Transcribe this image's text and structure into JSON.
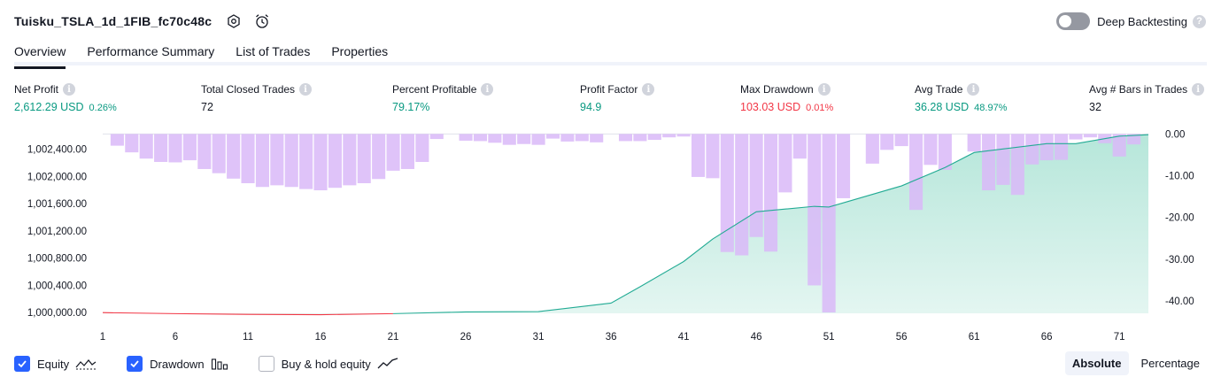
{
  "header": {
    "strategy_name": "Tuisku_TSLA_1d_1FIB_fc70c48c",
    "icons": [
      "settings-icon",
      "alarm-clock-icon"
    ]
  },
  "deep_backtesting": {
    "label": "Deep Backtesting",
    "enabled": false,
    "help": "?"
  },
  "tabs": [
    {
      "label": "Overview",
      "active": true
    },
    {
      "label": "Performance Summary",
      "active": false
    },
    {
      "label": "List of Trades",
      "active": false
    },
    {
      "label": "Properties",
      "active": false
    }
  ],
  "metrics": {
    "net_profit": {
      "label": "Net Profit",
      "value": "2,612.29 USD",
      "sub": "0.26%"
    },
    "total_closed_trades": {
      "label": "Total Closed Trades",
      "value": "72"
    },
    "percent_profitable": {
      "label": "Percent Profitable",
      "value": "79.17%"
    },
    "profit_factor": {
      "label": "Profit Factor",
      "value": "94.9"
    },
    "max_drawdown": {
      "label": "Max Drawdown",
      "value": "103.03 USD",
      "sub": "0.01%"
    },
    "avg_trade": {
      "label": "Avg Trade",
      "value": "36.28 USD",
      "sub": "48.97%"
    },
    "avg_bars": {
      "label": "Avg # Bars in Trades",
      "value": "32"
    },
    "info_glyph": "i"
  },
  "colors": {
    "profit": "#089981",
    "loss": "#f23645",
    "drawdown_bar": "#d9b8f8",
    "equity_line": "#22ab94",
    "equity_fill_top": "#b2e5d8",
    "accent": "#2962ff"
  },
  "chart_data": {
    "type": "line",
    "x_ticks": [
      1,
      6,
      11,
      16,
      21,
      26,
      31,
      36,
      41,
      46,
      51,
      56,
      61,
      66,
      71
    ],
    "left_axis": {
      "ticks": [
        1000000,
        1000400,
        1000800,
        1001200,
        1001600,
        1002000,
        1002400
      ],
      "tick_labels": [
        "1,000,000.00",
        "1,000,400.00",
        "1,000,800.00",
        "1,001,200.00",
        "1,001,600.00",
        "1,002,000.00",
        "1,002,400.00"
      ],
      "range": [
        999990,
        1002640
      ]
    },
    "right_axis": {
      "ticks": [
        0,
        -10,
        -20,
        -30,
        -40
      ],
      "tick_labels": [
        "0.00",
        "-10.00",
        "-20.00",
        "-30.00",
        "-40.00"
      ],
      "range": [
        -43,
        0.3
      ]
    },
    "equity": {
      "x": [
        1,
        6,
        11,
        16,
        21,
        26,
        31,
        36,
        38,
        41,
        43,
        46,
        48,
        50,
        51,
        56,
        59,
        61,
        66,
        68,
        71,
        73
      ],
      "y": [
        1000000,
        999985,
        999975,
        999970,
        999985,
        1000010,
        1000015,
        1000140,
        1000380,
        1000750,
        1001080,
        1001480,
        1001520,
        1001560,
        1001550,
        1001860,
        1002130,
        1002350,
        1002480,
        1002480,
        1002590,
        1002612
      ],
      "loss_segment_until": 21
    },
    "drawdown": {
      "x": [
        1,
        2,
        3,
        4,
        5,
        6,
        7,
        8,
        9,
        10,
        11,
        12,
        13,
        14,
        15,
        16,
        17,
        18,
        19,
        20,
        21,
        22,
        23,
        24,
        25,
        26,
        27,
        28,
        29,
        30,
        31,
        32,
        33,
        34,
        35,
        36,
        37,
        38,
        39,
        40,
        41,
        42,
        43,
        44,
        45,
        46,
        47,
        48,
        49,
        50,
        51,
        52,
        53,
        54,
        55,
        56,
        57,
        58,
        59,
        60,
        61,
        62,
        63,
        64,
        65,
        66,
        67,
        68,
        69,
        70,
        71,
        72,
        73
      ],
      "values": [
        0,
        -2.8,
        -4.4,
        -5.9,
        -6.7,
        -6.8,
        -6.3,
        -8.4,
        -9.4,
        -10.7,
        -11.8,
        -12.7,
        -12.3,
        -12.7,
        -13.2,
        -13.5,
        -12.9,
        -12.3,
        -11.8,
        -10.8,
        -8.8,
        -8.4,
        -6.7,
        -1.2,
        0,
        -1.6,
        -1.7,
        -2.1,
        -2.6,
        -2.4,
        -2.6,
        -1.1,
        -1.8,
        -1.7,
        -2.0,
        0,
        -1.7,
        -1.7,
        -1.4,
        -0.8,
        -0.6,
        -10.3,
        -10.6,
        -28.3,
        -29.1,
        -24.7,
        -28.2,
        -14.0,
        -5.9,
        -36.3,
        -42.8,
        -15.4,
        0,
        -7.1,
        -3.8,
        -2.9,
        -18.2,
        -7.4,
        -8.6,
        0,
        -4.2,
        -13.5,
        -12.2,
        -14.6,
        -7.3,
        -6.3,
        -6.2,
        -1.3,
        -0.8,
        -2.2,
        -5.4,
        -2.5,
        0
      ]
    }
  },
  "footer": {
    "checkboxes": [
      {
        "label": "Equity",
        "checked": true,
        "glyph": "equity-line-icon"
      },
      {
        "label": "Drawdown",
        "checked": true,
        "glyph": "drawdown-bars-icon"
      },
      {
        "label": "Buy & hold equity",
        "checked": false,
        "glyph": "buy-hold-line-icon"
      }
    ],
    "scale_buttons": [
      {
        "label": "Absolute",
        "active": true
      },
      {
        "label": "Percentage",
        "active": false
      }
    ]
  }
}
